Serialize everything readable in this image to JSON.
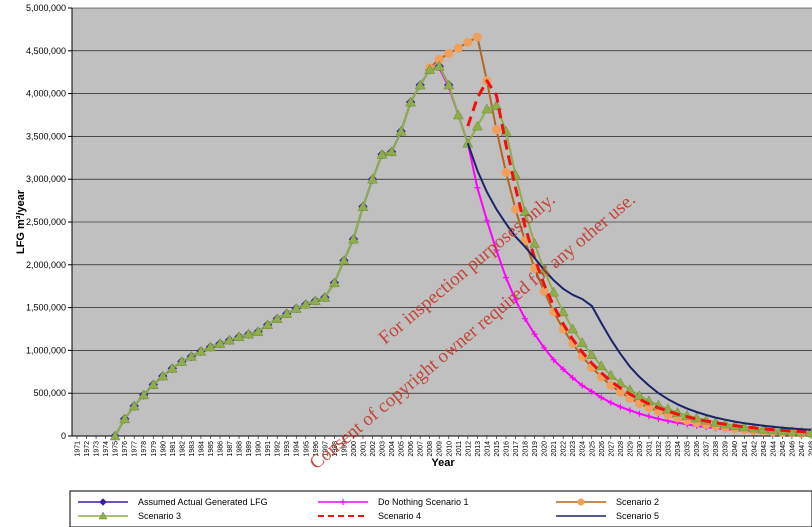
{
  "chart_data": {
    "type": "line",
    "title": "",
    "xlabel": "Year",
    "ylabel": "LFG m³/year",
    "xlim": [
      1971,
      2048
    ],
    "ylim": [
      0,
      5000000
    ],
    "y_ticks": [
      0,
      500000,
      1000000,
      1500000,
      2000000,
      2500000,
      3000000,
      3500000,
      4000000,
      4500000,
      5000000
    ],
    "y_tick_labels": [
      "0",
      "500,000",
      "1,000,000",
      "1,500,000",
      "2,000,000",
      "2,500,000",
      "3,000,000",
      "3,500,000",
      "4,000,000",
      "4,500,000",
      "5,000,000"
    ],
    "grid": true,
    "legend_position": "bottom",
    "series": [
      {
        "name": "Assumed Actual Generated LFG",
        "color": "#3b1fa6",
        "marker": "diamond",
        "dash": "solid",
        "x": [
          1975,
          1976,
          1977,
          1978,
          1979,
          1980,
          1981,
          1982,
          1983,
          1984,
          1985,
          1986,
          1987,
          1988,
          1989,
          1990,
          1991,
          1992,
          1993,
          1994,
          1995,
          1996,
          1997,
          1998,
          1999,
          2000,
          2001,
          2002,
          2003,
          2004,
          2005,
          2006,
          2007,
          2008,
          2009,
          2010
        ],
        "y": [
          0,
          200000,
          350000,
          480000,
          600000,
          700000,
          790000,
          870000,
          930000,
          990000,
          1040000,
          1080000,
          1120000,
          1160000,
          1190000,
          1220000,
          1300000,
          1370000,
          1430000,
          1490000,
          1540000,
          1580000,
          1620000,
          1790000,
          2050000,
          2300000,
          2680000,
          3000000,
          3290000,
          3320000,
          3560000,
          3900000,
          4100000,
          4280000,
          4320000,
          4100000
        ]
      },
      {
        "name": "Do Nothing Scenario 1",
        "color": "#ff00ff",
        "marker": "plus",
        "dash": "solid",
        "x": [
          2009,
          2010,
          2011,
          2012,
          2013,
          2014,
          2015,
          2016,
          2017,
          2018,
          2019,
          2020,
          2021,
          2022,
          2023,
          2024,
          2025,
          2026,
          2027,
          2028,
          2029,
          2030,
          2031,
          2032,
          2033,
          2034,
          2035,
          2036,
          2037,
          2038,
          2039,
          2040,
          2041,
          2042,
          2043,
          2044,
          2045,
          2046,
          2047,
          2048
        ],
        "y": [
          4300000,
          4080000,
          3750000,
          3420000,
          2900000,
          2520000,
          2170000,
          1850000,
          1590000,
          1370000,
          1190000,
          1030000,
          890000,
          780000,
          680000,
          590000,
          520000,
          450000,
          390000,
          340000,
          300000,
          260000,
          230000,
          200000,
          175000,
          155000,
          135000,
          118000,
          103000,
          90000,
          79000,
          69000,
          60000,
          52000,
          45000,
          39000,
          34000,
          30000,
          26000,
          23000
        ]
      },
      {
        "name": "Scenario 2",
        "color": "#b5651d",
        "marker": "circle",
        "markerColor": "#f0a05a",
        "dash": "solid",
        "x": [
          2008,
          2009,
          2010,
          2011,
          2012,
          2013,
          2014,
          2015,
          2016,
          2017,
          2018,
          2019,
          2020,
          2021,
          2022,
          2023,
          2024,
          2025,
          2026,
          2027,
          2028,
          2029,
          2030,
          2031,
          2032,
          2033,
          2034,
          2035,
          2036,
          2037,
          2038,
          2039,
          2040,
          2041,
          2042,
          2043,
          2044,
          2045,
          2046,
          2047,
          2048
        ],
        "y": [
          4300000,
          4400000,
          4470000,
          4530000,
          4600000,
          4660000,
          4150000,
          3580000,
          3080000,
          2650000,
          2280000,
          1960000,
          1690000,
          1450000,
          1250000,
          1080000,
          930000,
          800000,
          690000,
          590000,
          510000,
          440000,
          380000,
          330000,
          285000,
          245000,
          210000,
          180000,
          155000,
          133000,
          115000,
          99000,
          85000,
          73000,
          63000,
          54000,
          47000,
          40000,
          35000,
          30000,
          26000
        ]
      },
      {
        "name": "Scenario 3",
        "color": "#8fae4b",
        "marker": "triangle",
        "dash": "solid",
        "x": [
          1975,
          1976,
          1977,
          1978,
          1979,
          1980,
          1981,
          1982,
          1983,
          1984,
          1985,
          1986,
          1987,
          1988,
          1989,
          1990,
          1991,
          1992,
          1993,
          1994,
          1995,
          1996,
          1997,
          1998,
          1999,
          2000,
          2001,
          2002,
          2003,
          2004,
          2005,
          2006,
          2007,
          2008,
          2009,
          2010,
          2011,
          2012,
          2013,
          2014,
          2015,
          2016,
          2017,
          2018,
          2019,
          2020,
          2021,
          2022,
          2023,
          2024,
          2025,
          2026,
          2027,
          2028,
          2029,
          2030,
          2031,
          2032,
          2033,
          2034,
          2035,
          2036,
          2037,
          2038,
          2039,
          2040,
          2041,
          2042,
          2043,
          2044,
          2045,
          2046,
          2047,
          2048
        ],
        "y": [
          0,
          200000,
          350000,
          480000,
          600000,
          700000,
          790000,
          870000,
          930000,
          990000,
          1040000,
          1080000,
          1120000,
          1160000,
          1190000,
          1220000,
          1300000,
          1370000,
          1430000,
          1490000,
          1540000,
          1580000,
          1620000,
          1790000,
          2050000,
          2300000,
          2680000,
          3000000,
          3290000,
          3320000,
          3560000,
          3900000,
          4100000,
          4280000,
          4320000,
          4100000,
          3750000,
          3420000,
          3620000,
          3820000,
          3860000,
          3560000,
          3050000,
          2620000,
          2250000,
          1940000,
          1680000,
          1450000,
          1250000,
          1090000,
          950000,
          820000,
          710000,
          620000,
          540000,
          470000,
          410000,
          360000,
          315000,
          275000,
          240000,
          210000,
          185000,
          160000,
          140000,
          122000,
          106000,
          92000,
          80000,
          70000,
          61000,
          53000,
          46000,
          40000
        ]
      },
      {
        "name": "Scenario 4",
        "color": "#ee1111",
        "marker": "none",
        "dash": "dashed",
        "x": [
          2012,
          2013,
          2014,
          2015,
          2016,
          2017,
          2018,
          2019,
          2020,
          2021,
          2022,
          2023,
          2024,
          2025,
          2026,
          2027,
          2028,
          2029,
          2030,
          2031,
          2032,
          2033,
          2034,
          2035,
          2036,
          2037,
          2038,
          2039,
          2040,
          2041,
          2042,
          2043,
          2044,
          2045,
          2046,
          2047,
          2048
        ],
        "y": [
          3620000,
          3950000,
          4150000,
          3980000,
          3400000,
          2900000,
          2450000,
          2080000,
          1770000,
          1520000,
          1310000,
          1130000,
          980000,
          850000,
          740000,
          640000,
          560000,
          490000,
          430000,
          375000,
          330000,
          290000,
          255000,
          225000,
          198000,
          175000,
          155000,
          137000,
          121000,
          107000,
          95000,
          84000,
          74000,
          66000,
          58000,
          52000,
          46000
        ]
      },
      {
        "name": "Scenario 5",
        "color": "#1a2466",
        "marker": "none",
        "dash": "solid",
        "x": [
          2012,
          2013,
          2014,
          2015,
          2016,
          2017,
          2018,
          2019,
          2020,
          2021,
          2022,
          2023,
          2024,
          2025,
          2026,
          2027,
          2028,
          2029,
          2030,
          2031,
          2032,
          2033,
          2034,
          2035,
          2036,
          2037,
          2038,
          2039,
          2040,
          2041,
          2042,
          2043,
          2044,
          2045,
          2046,
          2047,
          2048
        ],
        "y": [
          3420000,
          3100000,
          2850000,
          2650000,
          2480000,
          2330000,
          2210000,
          2080000,
          1940000,
          1820000,
          1720000,
          1650000,
          1600000,
          1520000,
          1320000,
          1130000,
          960000,
          810000,
          690000,
          590000,
          500000,
          430000,
          370000,
          320000,
          280000,
          245000,
          215000,
          190000,
          168000,
          150000,
          134000,
          120000,
          108000,
          97000,
          88000,
          80000,
          72000
        ]
      }
    ]
  },
  "watermark": {
    "line1": "For inspection purposes only.",
    "line2": "Consent of copyright owner required for any other use."
  }
}
